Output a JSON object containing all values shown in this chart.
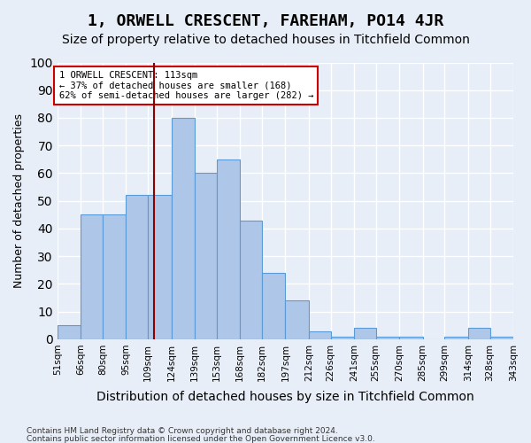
{
  "title": "1, ORWELL CRESCENT, FAREHAM, PO14 4JR",
  "subtitle": "Size of property relative to detached houses in Titchfield Common",
  "xlabel": "Distribution of detached houses by size in Titchfield Common",
  "ylabel": "Number of detached properties",
  "bin_edges": [
    51,
    66,
    80,
    95,
    109,
    124,
    139,
    153,
    168,
    182,
    197,
    212,
    226,
    241,
    255,
    270,
    285,
    299,
    314,
    328,
    343
  ],
  "bar_heights": [
    5,
    45,
    45,
    52,
    52,
    80,
    60,
    65,
    43,
    24,
    14,
    3,
    1,
    4,
    1,
    1,
    0,
    1,
    4,
    1
  ],
  "bar_color": "#aec6e8",
  "bar_edge_color": "#5b9bd5",
  "vline_x": 113,
  "vline_color": "#8b0000",
  "annotation_text": "1 ORWELL CRESCENT: 113sqm\n← 37% of detached houses are smaller (168)\n62% of semi-detached houses are larger (282) →",
  "annotation_box_color": "#ffffff",
  "annotation_box_edge": "#cc0000",
  "ylim": [
    0,
    100
  ],
  "yticks": [
    0,
    10,
    20,
    30,
    40,
    50,
    60,
    70,
    80,
    90,
    100
  ],
  "footer_line1": "Contains HM Land Registry data © Crown copyright and database right 2024.",
  "footer_line2": "Contains public sector information licensed under the Open Government Licence v3.0.",
  "background_color": "#e8eef7",
  "plot_bg_color": "#e8eef7",
  "grid_color": "#ffffff",
  "title_fontsize": 13,
  "subtitle_fontsize": 10,
  "xlabel_fontsize": 10,
  "ylabel_fontsize": 9,
  "tick_labels": [
    "51sqm",
    "66sqm",
    "80sqm",
    "95sqm",
    "109sqm",
    "124sqm",
    "139sqm",
    "153sqm",
    "168sqm",
    "182sqm",
    "197sqm",
    "212sqm",
    "226sqm",
    "241sqm",
    "255sqm",
    "270sqm",
    "285sqm",
    "299sqm",
    "314sqm",
    "328sqm",
    "343sqm"
  ]
}
